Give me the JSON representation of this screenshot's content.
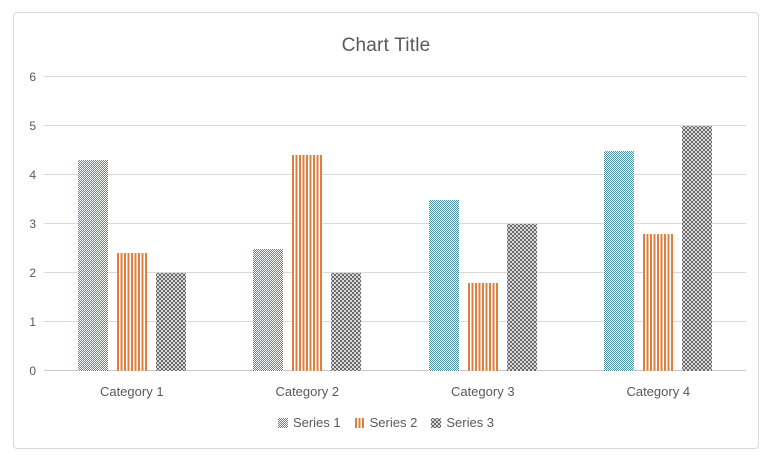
{
  "chart_data": {
    "type": "bar",
    "title": "Chart Title",
    "categories": [
      "Category 1",
      "Category 2",
      "Category 3",
      "Category 4"
    ],
    "series": [
      {
        "name": "Series 1",
        "pattern": "checker",
        "color": "#4e91a3",
        "values": [
          4.3,
          2.5,
          3.5,
          4.5
        ]
      },
      {
        "name": "Series 2",
        "pattern": "vertical-stripes",
        "color": "#e07f3d",
        "values": [
          2.4,
          4.4,
          1.8,
          2.8
        ]
      },
      {
        "name": "Series 3",
        "pattern": "dots",
        "color": "#6a6a6a",
        "values": [
          2.0,
          2.0,
          3.0,
          5.0
        ]
      }
    ],
    "xlabel": "",
    "ylabel": "",
    "ylim": [
      0,
      6
    ],
    "yticks": [
      0,
      1,
      2,
      3,
      4,
      5,
      6
    ],
    "grid": true,
    "legend_position": "bottom"
  },
  "colors": {
    "title_text": "#595959",
    "axis_text": "#595959",
    "gridline": "#d9d9d9",
    "frame_border": "#d9d9d9",
    "background": "#ffffff"
  }
}
